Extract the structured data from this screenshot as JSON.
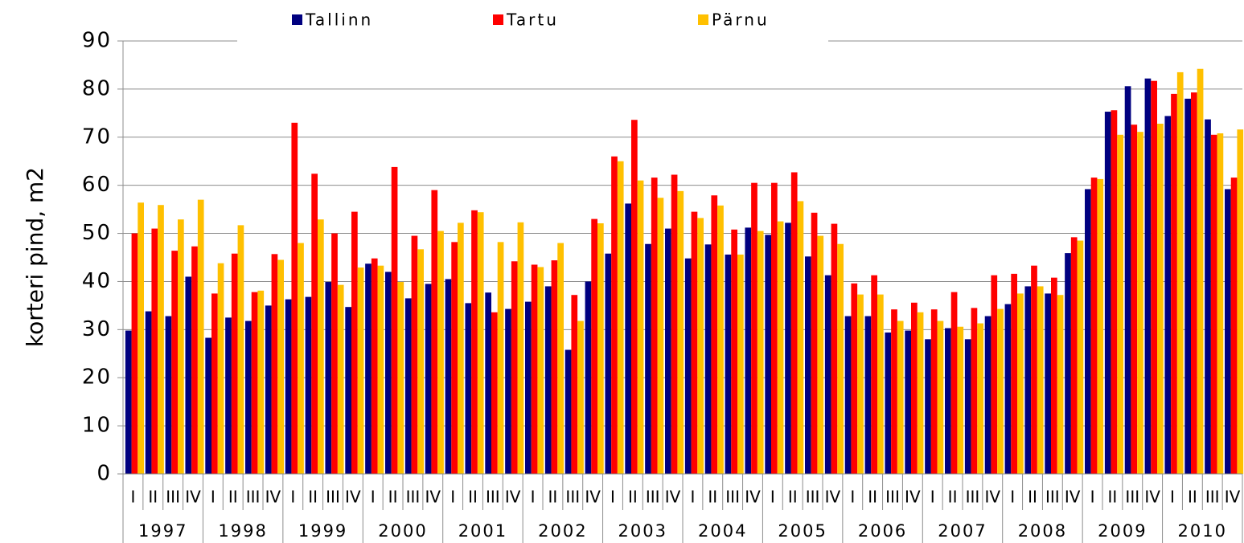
{
  "chart_data": {
    "type": "bar",
    "y_label": "korteri pind, m2",
    "categories": [
      "I",
      "II",
      "III",
      "IV",
      "I",
      "II",
      "III",
      "IV",
      "I",
      "II",
      "III",
      "IV",
      "I",
      "II",
      "III",
      "IV",
      "I",
      "II",
      "III",
      "IV",
      "I",
      "II",
      "III",
      "IV",
      "I",
      "II",
      "III",
      "IV",
      "I",
      "II",
      "III",
      "IV",
      "I",
      "II",
      "III",
      "IV",
      "I",
      "II",
      "III",
      "IV",
      "I",
      "II",
      "III",
      "IV",
      "I",
      "II",
      "III",
      "IV",
      "I",
      "II",
      "III",
      "IV",
      "I",
      "II",
      "III",
      "IV"
    ],
    "years": [
      "1997",
      "1998",
      "1999",
      "2000",
      "2001",
      "2002",
      "2003",
      "2004",
      "2005",
      "2006",
      "2007",
      "2008",
      "2009",
      "2010"
    ],
    "series": [
      {
        "name": "Tallinn",
        "color": "#000080",
        "values": [
          29.8,
          33.8,
          32.8,
          41,
          28.3,
          32.5,
          31.8,
          35,
          36.3,
          36.8,
          39.9,
          34.7,
          43.7,
          42,
          36.5,
          39.5,
          40.5,
          35.5,
          37.7,
          34.3,
          35.8,
          39,
          25.8,
          40,
          45.8,
          56.2,
          47.8,
          51,
          44.8,
          47.7,
          45.6,
          51.2,
          49.7,
          52.2,
          45.2,
          41.3,
          32.8,
          32.8,
          29.4,
          29.8,
          28,
          30.3,
          28,
          32.8,
          35.3,
          39,
          37.5,
          45.9,
          59.2,
          75.3,
          80.6,
          82.2,
          74.4,
          78,
          73.7,
          59.2
        ]
      },
      {
        "name": "Tartu",
        "color": "#ff0000",
        "values": [
          50,
          51,
          46.4,
          47.3,
          37.5,
          45.8,
          37.8,
          45.7,
          73,
          62.4,
          50,
          54.5,
          44.8,
          63.8,
          49.5,
          59,
          48.2,
          54.8,
          33.6,
          44.2,
          43.5,
          44.4,
          37.2,
          53,
          66,
          73.6,
          61.6,
          62.2,
          54.5,
          57.9,
          50.8,
          60.5,
          60.5,
          62.7,
          54.3,
          52,
          39.6,
          41.3,
          34.2,
          35.6,
          34.2,
          37.8,
          34.5,
          41.3,
          41.6,
          43.3,
          40.8,
          49.2,
          61.6,
          75.6,
          72.6,
          81.7,
          79,
          79.3,
          70.5,
          61.6
        ]
      },
      {
        "name": "Pärnu",
        "color": "#ffc000",
        "values": [
          56.4,
          55.9,
          52.9,
          57,
          43.8,
          51.7,
          38.1,
          44.5,
          48,
          52.9,
          39.3,
          42.9,
          43.3,
          39.9,
          46.7,
          50.5,
          52.2,
          54.4,
          48.2,
          52.3,
          43,
          48,
          31.8,
          52.1,
          65,
          61,
          57.4,
          58.8,
          53.2,
          55.8,
          45.6,
          50.5,
          52.5,
          56.7,
          49.5,
          47.8,
          37.3,
          37.3,
          31.8,
          33.6,
          31.8,
          30.6,
          31.3,
          34.3,
          37.5,
          39,
          37.2,
          48.5,
          61.3,
          70.5,
          71.1,
          72.8,
          83.5,
          84.2,
          70.8,
          71.6
        ]
      }
    ],
    "ylim": [
      0,
      90
    ],
    "yticks": [
      0,
      10,
      20,
      30,
      40,
      50,
      60,
      70,
      80,
      90
    ],
    "grid": true,
    "legend": "top"
  }
}
